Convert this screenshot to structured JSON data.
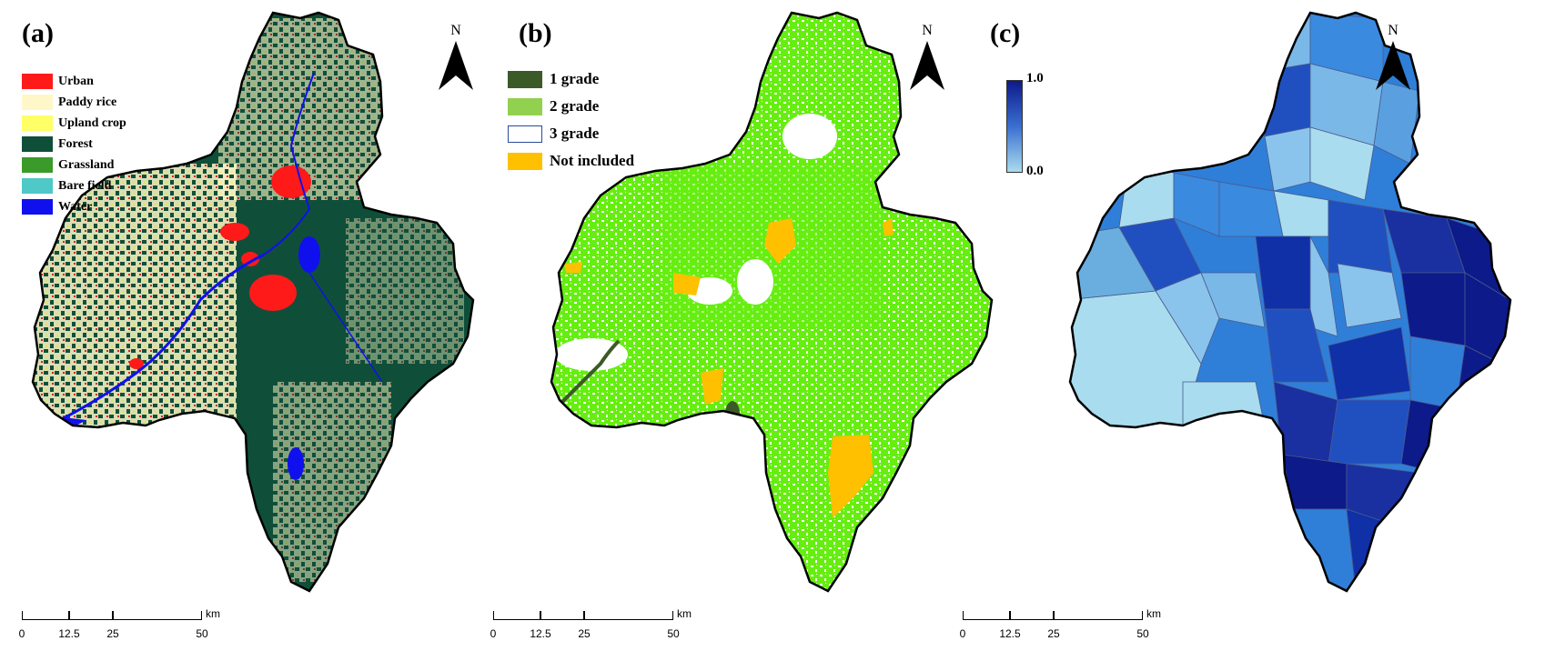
{
  "panels": [
    {
      "id": "a",
      "label": "(a)",
      "legend": [
        {
          "label": "Urban",
          "color": "#ff1a1a"
        },
        {
          "label": "Paddy rice",
          "color": "#fff7c8"
        },
        {
          "label": "Upland crop",
          "color": "#ffff66"
        },
        {
          "label": "Forest",
          "color": "#0f4f3a"
        },
        {
          "label": "Grassland",
          "color": "#3a9a2a"
        },
        {
          "label": "Bare field",
          "color": "#4fc8c8"
        },
        {
          "label": "Water",
          "color": "#1010ee"
        }
      ],
      "north": "N",
      "scale": {
        "ticks": [
          "0",
          "12.5",
          "25",
          "50"
        ],
        "unit": "km"
      }
    },
    {
      "id": "b",
      "label": "(b)",
      "legend": [
        {
          "label": "1 grade",
          "color": "#3c5a28"
        },
        {
          "label": "2 grade",
          "color": "#92d050"
        },
        {
          "label": "3 grade",
          "color": "#ffffff"
        },
        {
          "label": "Not included",
          "color": "#ffc000"
        }
      ],
      "north": "N",
      "scale": {
        "ticks": [
          "0",
          "12.5",
          "25",
          "50"
        ],
        "unit": "km"
      }
    },
    {
      "id": "c",
      "label": "(c)",
      "colorbar": {
        "max": "1.0",
        "min": "0.0",
        "color_high": "#0d1a8a",
        "color_low": "#a9dcee"
      },
      "north": "N",
      "scale": {
        "ticks": [
          "0",
          "12.5",
          "25",
          "50"
        ],
        "unit": "km"
      }
    }
  ]
}
